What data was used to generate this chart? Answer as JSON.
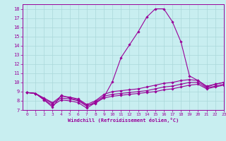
{
  "xlabel": "Windchill (Refroidissement éolien,°C)",
  "xlim": [
    -0.5,
    23
  ],
  "ylim": [
    7,
    18.5
  ],
  "yticks": [
    7,
    8,
    9,
    10,
    11,
    12,
    13,
    14,
    15,
    16,
    17,
    18
  ],
  "xticks": [
    0,
    1,
    2,
    3,
    4,
    5,
    6,
    7,
    8,
    9,
    10,
    11,
    12,
    13,
    14,
    15,
    16,
    17,
    18,
    19,
    20,
    21,
    22,
    23
  ],
  "background_color": "#c8eef0",
  "grid_color": "#aad8da",
  "line_color": "#990099",
  "series": [
    [
      8.9,
      8.8,
      8.1,
      7.3,
      8.6,
      8.3,
      8.1,
      7.5,
      7.7,
      8.4,
      10.1,
      12.7,
      14.1,
      15.5,
      17.1,
      18.0,
      18.0,
      16.6,
      14.4,
      10.7,
      10.2,
      9.5,
      9.8,
      10.0
    ],
    [
      8.9,
      8.8,
      8.1,
      7.5,
      8.1,
      8.0,
      7.8,
      7.2,
      7.8,
      8.3,
      8.5,
      8.6,
      8.7,
      8.8,
      8.9,
      9.0,
      9.2,
      9.3,
      9.5,
      9.7,
      9.8,
      9.3,
      9.5,
      9.7
    ],
    [
      8.9,
      8.8,
      8.2,
      7.7,
      8.3,
      8.2,
      8.0,
      7.4,
      7.9,
      8.5,
      8.7,
      8.8,
      8.9,
      9.0,
      9.1,
      9.3,
      9.5,
      9.6,
      9.8,
      10.0,
      10.0,
      9.4,
      9.6,
      9.8
    ],
    [
      8.9,
      8.8,
      8.3,
      7.8,
      8.5,
      8.4,
      8.2,
      7.6,
      8.0,
      8.7,
      9.0,
      9.1,
      9.2,
      9.3,
      9.5,
      9.7,
      9.9,
      10.0,
      10.2,
      10.3,
      10.2,
      9.6,
      9.8,
      10.0
    ]
  ]
}
